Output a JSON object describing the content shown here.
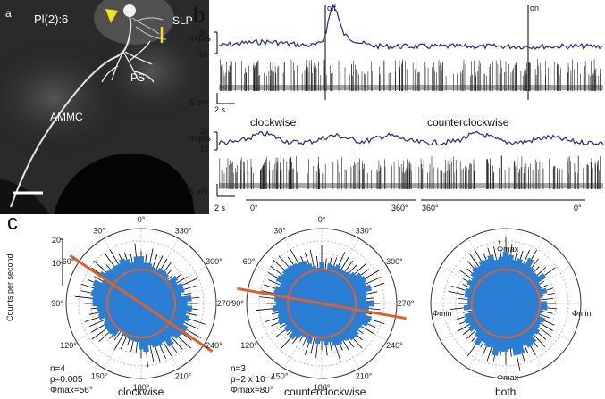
{
  "panel_a": {
    "letter": "a",
    "genotype_label": "Pl(2):6",
    "labels": {
      "slp": "SLP",
      "ps": "PS",
      "ammc": "AMMC"
    }
  },
  "panel_b": {
    "letter": "b",
    "top": {
      "stim_off": "off",
      "stim_on": "on",
      "rate_axis_label": "imp/s",
      "rate_ticks": [
        "30",
        "10"
      ],
      "voltage_scale": "5 mV",
      "time_scale": "2 s"
    },
    "bottom": {
      "cw_label": "clockwise",
      "ccw_label": "counterclockwise",
      "rate_axis_label": "imp/s",
      "rate_ticks": [
        "20",
        "10"
      ],
      "voltage_scale": "5 mV",
      "time_scale": "2 s",
      "angle_labels": [
        "0°",
        "360°",
        "360°",
        "0°"
      ]
    }
  },
  "panel_c": {
    "letter": "c",
    "y_axis_label": "Counts per second",
    "y_ticks": [
      "20",
      "10"
    ],
    "polar_angle_labels": [
      "0°",
      "30°",
      "60°",
      "90°",
      "120°",
      "150°",
      "180°",
      "210°",
      "240°",
      "270°",
      "300°",
      "330°"
    ],
    "plots": [
      {
        "title": "clockwise",
        "stats": [
          "n=4",
          "p=0.005",
          "Φmax=56°"
        ]
      },
      {
        "title": "counterclockwise",
        "stats": [
          "n=3",
          "p=2 x 10⁻⁴",
          "Φmax=80°"
        ]
      },
      {
        "title": "both",
        "phi_max": "Φmax",
        "phi_min": "Φmin"
      }
    ],
    "colors": {
      "bars": "#2a7fd4",
      "fit": "#e0602a",
      "rate": "#1f2a8c"
    }
  }
}
